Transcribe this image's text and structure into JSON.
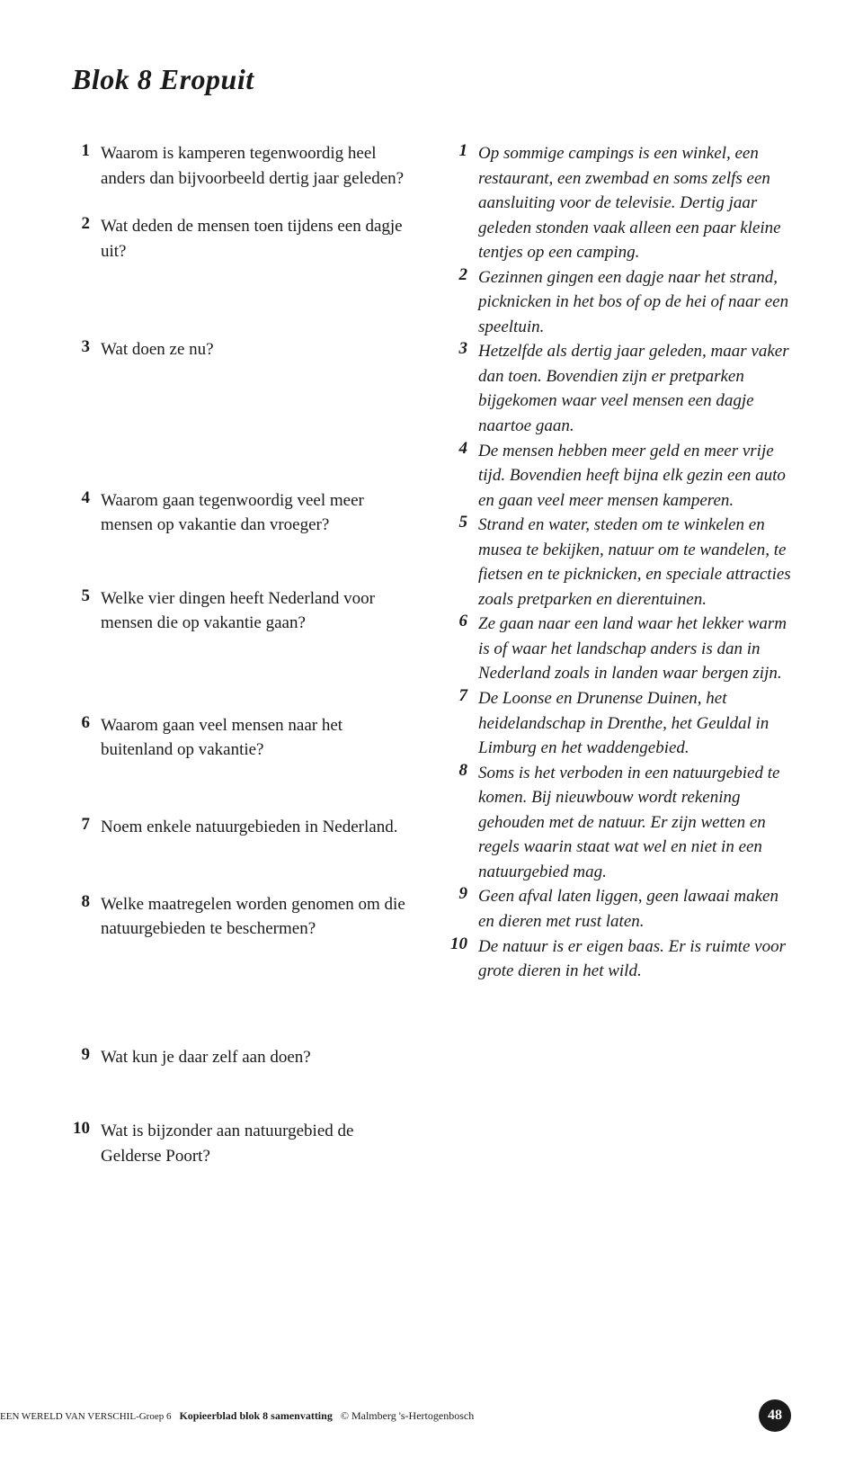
{
  "title": "Blok 8 Eropuit",
  "questions": [
    {
      "n": "1",
      "t": "Waarom is kamperen tegenwoordig heel anders dan bijvoorbeeld dertig jaar geleden?"
    },
    {
      "n": "2",
      "t": "Wat deden de mensen toen tijdens een dagje uit?"
    },
    {
      "n": "3",
      "t": "Wat doen ze nu?"
    },
    {
      "n": "4",
      "t": "Waarom gaan tegenwoordig veel meer mensen op vakantie dan vroeger?"
    },
    {
      "n": "5",
      "t": "Welke vier dingen heeft Nederland voor mensen die op vakantie gaan?"
    },
    {
      "n": "6",
      "t": "Waarom gaan veel mensen naar het buitenland op vakantie?"
    },
    {
      "n": "7",
      "t": "Noem enkele natuurgebieden in Nederland."
    },
    {
      "n": "8",
      "t": "Welke maatregelen worden genomen om die natuurgebieden te beschermen?"
    },
    {
      "n": "9",
      "t": "Wat kun je daar zelf aan doen?"
    },
    {
      "n": "10",
      "t": "Wat is bijzonder aan natuurgebied de Gelderse Poort?"
    }
  ],
  "answers": [
    {
      "n": "1",
      "t": "Op sommige campings is een winkel, een restaurant, een zwembad en soms zelfs een aansluiting voor de televisie. Dertig jaar geleden stonden vaak alleen een paar kleine tentjes op een camping."
    },
    {
      "n": "2",
      "t": "Gezinnen gingen een dagje naar het strand, picknicken in het bos of op de hei of naar een speeltuin."
    },
    {
      "n": "3",
      "t": "Hetzelfde als dertig jaar geleden, maar vaker dan toen. Bovendien zijn er pretparken bijgekomen waar veel mensen een dagje naartoe gaan."
    },
    {
      "n": "4",
      "t": "De mensen hebben meer geld en meer vrije tijd. Bovendien heeft bijna elk gezin een auto en gaan veel meer mensen kamperen."
    },
    {
      "n": "5",
      "t": "Strand en water, steden om te winkelen en musea te bekijken, natuur om te wandelen, te fietsen en te picknicken, en speciale attracties zoals pretparken en dierentuinen."
    },
    {
      "n": "6",
      "t": "Ze gaan naar een land waar het lekker warm is of waar het landschap anders is dan in Nederland zoals in landen waar bergen zijn."
    },
    {
      "n": "7",
      "t": "De Loonse en Drunense Duinen, het heidelandschap in Drenthe, het Geuldal in Limburg en het waddengebied."
    },
    {
      "n": "8",
      "t": "Soms is het verboden in een natuurgebied te komen. Bij nieuwbouw wordt rekening gehouden met de natuur. Er zijn wetten en regels waarin staat wat wel en niet in een natuurgebied mag."
    },
    {
      "n": "9",
      "t": "Geen afval laten liggen, geen lawaai maken en dieren met rust laten."
    },
    {
      "n": "10",
      "t": "De natuur is er eigen baas. Er is ruimte voor grote dieren in het wild."
    }
  ],
  "footer": {
    "series": "EEN WERELD VAN VERSCHIL",
    "group": "-Groep 6",
    "doc": "Kopieerblad blok 8 samenvatting",
    "copyright": "© Malmberg 's-Hertogenbosch",
    "page": "48"
  }
}
